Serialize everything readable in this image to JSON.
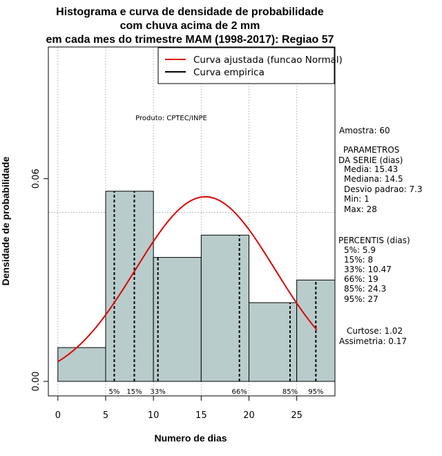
{
  "title_lines": [
    "Histograma e curva de densidade de probabilidade",
    "com chuva acima de 2 mm",
    "em cada mes do trimestre MAM (1998-2017): Regiao 57"
  ],
  "credit": "Produto: CPTEC/INPE",
  "legend": {
    "placement": "top-right",
    "items": [
      {
        "label": "Curva ajustada (funcao Normal)",
        "color": "#dd0000"
      },
      {
        "label": "Curva empirica",
        "color": "#000000"
      }
    ]
  },
  "side_panel": {
    "amostra": "Amostra: 60",
    "params_title_1": "PARAMETROS",
    "params_title_2": "DA SERIE (dias)",
    "params": [
      "Media: 15.43",
      "Mediana: 14.5",
      "Desvio padrao: 7.3",
      "Min: 1",
      "Max: 28"
    ],
    "percentis_title": "PERCENTIS (dias)",
    "percentis": [
      "5%: 5.9",
      "15%: 8",
      "33%: 10.47",
      "66%: 19",
      "85%: 24.3",
      "95%: 27"
    ],
    "curtose": "Curtose: 1.02",
    "assimetria": "Assimetria: 0.17"
  },
  "colors": {
    "bar_fill": "#b8cccb",
    "normal_curve": "#dd0000",
    "grid": "#b0b0b0"
  },
  "chart_data": {
    "type": "bar",
    "xlabel": "Numero de dias",
    "ylabel": "Densidade de probabilidade",
    "xlim": [
      -1,
      29
    ],
    "ylim": [
      -0.0043,
      0.099
    ],
    "x_ticks": [
      0,
      5,
      10,
      15,
      20,
      25
    ],
    "y_ticks": [
      0.0,
      0.06
    ],
    "y_tick_labels": [
      "0.00",
      "0.06"
    ],
    "grid_x": [
      0,
      5,
      10,
      15,
      20,
      25
    ],
    "grid_y": [
      0.05
    ],
    "bins": [
      {
        "x0": 0,
        "x1": 5,
        "density": 0.01
      },
      {
        "x0": 5,
        "x1": 10,
        "density": 0.0563
      },
      {
        "x0": 10,
        "x1": 15,
        "density": 0.0367
      },
      {
        "x0": 15,
        "x1": 20,
        "density": 0.0433
      },
      {
        "x0": 20,
        "x1": 25,
        "density": 0.0233
      },
      {
        "x0": 25,
        "x1": 29,
        "density": 0.03
      }
    ],
    "normal_fit": {
      "mean": 15.43,
      "sd": 7.3,
      "x_range": [
        0,
        27.1
      ]
    },
    "percentile_markers": [
      {
        "label": "5%",
        "x": 5.9
      },
      {
        "label": "15%",
        "x": 8
      },
      {
        "label": "33%",
        "x": 10.47
      },
      {
        "label": "66%",
        "x": 19
      },
      {
        "label": "85%",
        "x": 24.3
      },
      {
        "label": "95%",
        "x": 27
      }
    ]
  }
}
